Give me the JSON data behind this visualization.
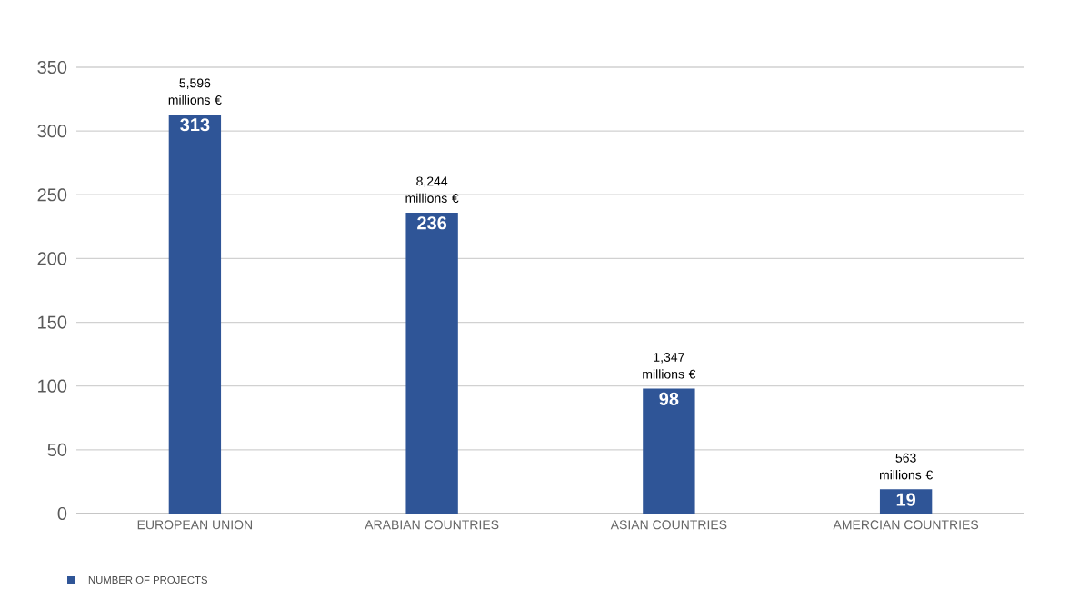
{
  "chart_data": {
    "type": "bar",
    "categories": [
      "EUROPEAN UNION",
      "ARABIAN COUNTRIES",
      "ASIAN COUNTRIES",
      "AMERCIAN COUNTRIES"
    ],
    "series": [
      {
        "name": "NUMBER OF PROJECTS",
        "color": "#2f5597",
        "values": [
          313,
          236,
          98,
          19
        ]
      }
    ],
    "ylim": [
      0,
      350
    ],
    "yticks": [
      0,
      50,
      100,
      150,
      200,
      250,
      300,
      350
    ],
    "grid": "y",
    "legend": "bottom left",
    "data_labels": true,
    "annotations": [
      {
        "text": "5,596 millions €",
        "x": "EUROPEAN UNION",
        "y": 313
      },
      {
        "text": "8,244 millions €",
        "x": "ARABIAN COUNTRIES",
        "y": 236
      },
      {
        "text": "1,347 millions €",
        "x": "ASIAN COUNTRIES",
        "y": 98
      },
      {
        "text": "563 millions €",
        "x": "AMERCIAN COUNTRIES",
        "y": 19
      }
    ]
  }
}
